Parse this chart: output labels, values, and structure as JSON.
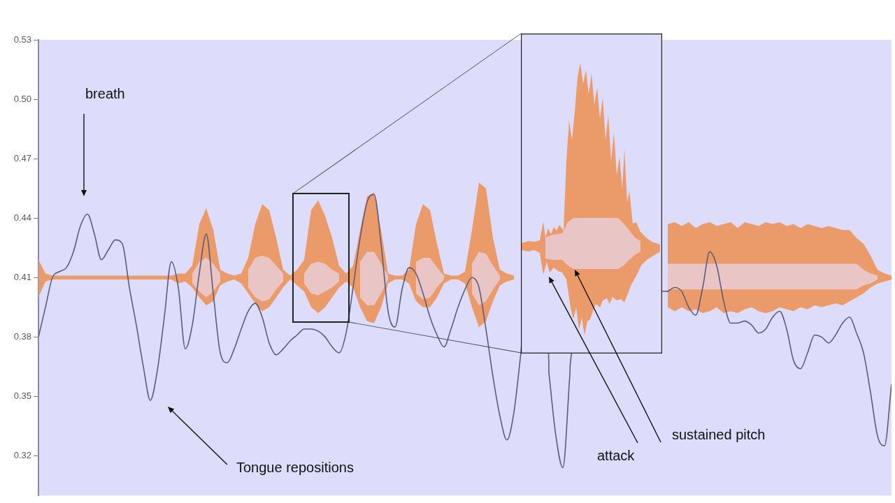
{
  "chart_data": {
    "type": "line",
    "tick_labels": "y",
    "ylim": [
      0.3,
      0.53
    ],
    "yticks": [
      0.32,
      0.35,
      0.38,
      0.41,
      0.44,
      0.47,
      {
        "value": 0.5,
        "label": "0.50"
      },
      0.53
    ],
    "categories": [
      null,
      null,
      null,
      null,
      null,
      null,
      null,
      null,
      null,
      null,
      null,
      null,
      null,
      null,
      null,
      null,
      null,
      null,
      null,
      null,
      null,
      null,
      null,
      null,
      null,
      null,
      null,
      null,
      null,
      null,
      null,
      null,
      null,
      null,
      null,
      null,
      null,
      null,
      null,
      null,
      null,
      null,
      null,
      null,
      null,
      null,
      null,
      null,
      null,
      null,
      null,
      null,
      null,
      null,
      null,
      null,
      null,
      null,
      null,
      null,
      null,
      null,
      null,
      null,
      null,
      null,
      null,
      null,
      null,
      null,
      null,
      null,
      null,
      null,
      null,
      null,
      null,
      null,
      null,
      null,
      null,
      null,
      null,
      null,
      null,
      null,
      null,
      null,
      null,
      null,
      null,
      null,
      null,
      null,
      null,
      null,
      null,
      null,
      null,
      null,
      null,
      null,
      null,
      null,
      null,
      null,
      null,
      null,
      null,
      null,
      null,
      null,
      null,
      null,
      null,
      null,
      null,
      null,
      null,
      null,
      null,
      null,
      null
    ],
    "series": [
      {
        "color": "#eb9b6a",
        "values": [
          null,
          null,
          null,
          null,
          null,
          null,
          null,
          null,
          null,
          null,
          null,
          null,
          null,
          null,
          null,
          null,
          null,
          null,
          null,
          null,
          null,
          null,
          null,
          null,
          null,
          null,
          null,
          null,
          null,
          null,
          null,
          null,
          null,
          null,
          null,
          null,
          null,
          null,
          null,
          null,
          null,
          null,
          null,
          null,
          null,
          null,
          null,
          null,
          null,
          null,
          null,
          null,
          null,
          null,
          null,
          null,
          null,
          null,
          null,
          null,
          null,
          null,
          null,
          null,
          null,
          null,
          null,
          null,
          null,
          null,
          null,
          null,
          null,
          null,
          null,
          null,
          null,
          null,
          null,
          null,
          null,
          null,
          null,
          null,
          null,
          null,
          null,
          null,
          null,
          null,
          null,
          null,
          null,
          null,
          null,
          null,
          null,
          null,
          null,
          null,
          null,
          null,
          null,
          null,
          null,
          null,
          null,
          null,
          null,
          null,
          null,
          null,
          null,
          null,
          null,
          null,
          null,
          null,
          null,
          null,
          null,
          null,
          null
        ],
        "upper": [
          0.419,
          0.412,
          0.411,
          0.411,
          0.411,
          0.411,
          0.411,
          0.411,
          0.411,
          0.411,
          0.411,
          0.411,
          0.411,
          0.411,
          0.411,
          0.411,
          0.411,
          0.411,
          0.411,
          0.411,
          0.412,
          0.412,
          0.416,
          0.437,
          0.445,
          0.434,
          0.414,
          0.412,
          0.411,
          0.412,
          0.42,
          0.437,
          0.447,
          0.444,
          0.43,
          0.414,
          0.411,
          0.414,
          0.419,
          0.444,
          0.449,
          0.441,
          0.43,
          0.416,
          0.412,
          0.416,
          0.434,
          0.451,
          0.453,
          0.434,
          0.412,
          0.411,
          0.411,
          0.414,
          0.437,
          0.447,
          0.444,
          0.427,
          0.412,
          0.411,
          0.411,
          0.413,
          0.434,
          0.458,
          0.455,
          0.43,
          0.414,
          0.412,
          0.411,
          null,
          null,
          null,
          null,
          null,
          null,
          null,
          null,
          null,
          null,
          null,
          null,
          null,
          null,
          null,
          null,
          null,
          null,
          null,
          null,
          null,
          0.437,
          0.438,
          0.436,
          0.438,
          0.435,
          0.437,
          0.438,
          0.436,
          0.437,
          0.438,
          0.435,
          0.438,
          0.437,
          0.436,
          0.438,
          0.437,
          0.438,
          0.436,
          0.437,
          0.435,
          0.437,
          0.436,
          0.435,
          0.436,
          0.435,
          0.434,
          0.434,
          0.43,
          0.427,
          0.421,
          0.414,
          0.412,
          0.411
        ],
        "lower": [
          0.4,
          0.408,
          0.409,
          0.409,
          0.409,
          0.409,
          0.409,
          0.409,
          0.409,
          0.409,
          0.409,
          0.409,
          0.409,
          0.409,
          0.409,
          0.409,
          0.409,
          0.409,
          0.409,
          0.409,
          0.407,
          0.408,
          0.405,
          0.4,
          0.396,
          0.398,
          0.406,
          0.408,
          0.409,
          0.407,
          0.402,
          0.397,
          0.393,
          0.395,
          0.4,
          0.405,
          0.409,
          0.406,
          0.403,
          0.395,
          0.392,
          0.395,
          0.4,
          0.405,
          0.408,
          0.405,
          0.395,
          0.388,
          0.387,
          0.395,
          0.407,
          0.409,
          0.409,
          0.407,
          0.398,
          0.395,
          0.395,
          0.4,
          0.407,
          0.409,
          0.409,
          0.407,
          0.395,
          0.385,
          0.388,
          0.398,
          0.406,
          0.408,
          0.409,
          null,
          null,
          null,
          null,
          null,
          null,
          null,
          null,
          null,
          null,
          null,
          null,
          null,
          null,
          null,
          null,
          null,
          null,
          null,
          null,
          null,
          0.395,
          0.393,
          0.395,
          0.393,
          0.394,
          0.392,
          0.393,
          0.395,
          0.392,
          0.393,
          0.392,
          0.394,
          0.395,
          0.393,
          0.392,
          0.393,
          0.395,
          0.394,
          0.393,
          0.395,
          0.394,
          0.396,
          0.395,
          0.396,
          0.397,
          0.396,
          0.398,
          0.4,
          0.402,
          0.405,
          0.407,
          0.408,
          0.409
        ]
      },
      {
        "color": "#e9c5c5",
        "values": [
          null,
          null,
          null,
          null,
          null,
          null,
          null,
          null,
          null,
          null,
          null,
          null,
          null,
          null,
          null,
          null,
          null,
          null,
          null,
          null,
          null,
          null,
          null,
          null,
          null,
          null,
          null,
          null,
          null,
          null,
          null,
          null,
          null,
          null,
          null,
          null,
          null,
          null,
          null,
          null,
          null,
          null,
          null,
          null,
          null,
          null,
          null,
          null,
          null,
          null,
          null,
          null,
          null,
          null,
          null,
          null,
          null,
          null,
          null,
          null,
          null,
          null,
          null,
          null,
          null,
          null,
          null,
          null,
          null,
          null,
          null,
          null,
          null,
          null,
          null,
          null,
          null,
          null,
          null,
          null,
          null,
          null,
          null,
          null,
          null,
          null,
          null,
          null,
          null,
          null,
          null,
          null,
          null,
          null,
          null,
          null,
          null,
          null,
          null,
          null,
          null,
          null,
          null,
          null,
          null,
          null,
          null,
          null,
          null,
          null,
          null,
          null,
          null,
          null,
          null,
          null,
          null,
          null,
          null,
          null,
          null,
          null,
          null
        ],
        "upper": [
          null,
          null,
          null,
          null,
          null,
          null,
          null,
          null,
          null,
          null,
          null,
          null,
          null,
          null,
          null,
          null,
          null,
          null,
          null,
          null,
          null,
          null,
          0.412,
          0.418,
          0.42,
          0.417,
          0.412,
          null,
          null,
          null,
          0.414,
          0.42,
          0.421,
          0.42,
          0.416,
          0.412,
          null,
          null,
          0.412,
          0.417,
          0.418,
          0.417,
          0.414,
          0.412,
          null,
          null,
          0.418,
          0.423,
          0.423,
          0.417,
          0.411,
          null,
          null,
          null,
          0.418,
          0.42,
          0.42,
          0.415,
          0.411,
          null,
          null,
          null,
          0.417,
          0.423,
          0.422,
          0.416,
          0.411,
          null,
          null,
          null,
          null,
          null,
          null,
          null,
          null,
          null,
          null,
          null,
          null,
          null,
          null,
          null,
          null,
          null,
          null,
          null,
          null,
          null,
          null,
          null,
          0.417,
          0.417,
          0.417,
          0.417,
          0.417,
          0.417,
          0.417,
          0.417,
          0.417,
          0.417,
          0.417,
          0.417,
          0.417,
          0.417,
          0.417,
          0.417,
          0.417,
          0.417,
          0.417,
          0.417,
          0.417,
          0.417,
          0.417,
          0.417,
          0.417,
          0.417,
          0.417,
          0.417,
          0.414,
          0.412,
          0.411,
          null,
          null
        ],
        "lower": [
          null,
          null,
          null,
          null,
          null,
          null,
          null,
          null,
          null,
          null,
          null,
          null,
          null,
          null,
          null,
          null,
          null,
          null,
          null,
          null,
          null,
          null,
          0.407,
          0.403,
          0.4,
          0.403,
          0.408,
          null,
          null,
          null,
          0.405,
          0.4,
          0.398,
          0.399,
          0.404,
          0.408,
          null,
          null,
          0.407,
          0.402,
          0.401,
          0.403,
          0.405,
          0.408,
          null,
          null,
          0.4,
          0.396,
          0.396,
          0.402,
          0.409,
          null,
          null,
          null,
          0.402,
          0.399,
          0.4,
          0.405,
          0.409,
          null,
          null,
          null,
          0.402,
          0.396,
          0.398,
          0.404,
          0.409,
          null,
          null,
          null,
          null,
          null,
          null,
          null,
          null,
          null,
          null,
          null,
          null,
          null,
          null,
          null,
          null,
          null,
          null,
          null,
          null,
          null,
          null,
          null,
          0.404,
          0.404,
          0.404,
          0.404,
          0.404,
          0.404,
          0.404,
          0.404,
          0.404,
          0.404,
          0.404,
          0.404,
          0.404,
          0.404,
          0.404,
          0.404,
          0.404,
          0.404,
          0.404,
          0.404,
          0.404,
          0.404,
          0.404,
          0.404,
          0.404,
          0.404,
          0.404,
          0.404,
          0.406,
          0.407,
          0.409,
          null,
          null
        ]
      },
      {
        "color": "#5b5d78",
        "values": [
          0.38,
          0.395,
          0.41,
          0.413,
          0.415,
          0.423,
          0.436,
          0.442,
          0.432,
          0.419,
          0.424,
          0.429,
          0.427,
          0.405,
          0.386,
          0.365,
          0.348,
          0.363,
          0.39,
          0.418,
          0.405,
          0.374,
          0.386,
          0.412,
          0.432,
          0.402,
          0.372,
          0.367,
          0.374,
          0.384,
          0.393,
          0.397,
          0.39,
          0.377,
          0.371,
          0.374,
          0.378,
          0.381,
          0.384,
          0.384,
          0.383,
          0.38,
          0.375,
          0.372,
          0.382,
          0.405,
          0.43,
          0.448,
          0.452,
          0.427,
          0.393,
          0.385,
          0.404,
          0.415,
          0.412,
          0.402,
          0.39,
          0.381,
          0.375,
          0.384,
          0.395,
          0.404,
          0.41,
          0.405,
          0.384,
          0.36,
          0.34,
          0.328,
          0.342,
          0.372,
          null,
          null,
          null,
          0.362,
          0.33,
          0.314,
          0.361,
          null,
          null,
          null,
          null,
          null,
          null,
          null,
          null,
          null,
          null,
          null,
          null,
          null,
          0.403,
          0.405,
          0.403,
          0.395,
          0.391,
          0.405,
          0.423,
          0.416,
          0.398,
          0.387,
          0.387,
          0.388,
          0.386,
          0.382,
          0.384,
          0.39,
          0.393,
          0.384,
          0.368,
          0.364,
          0.372,
          0.381,
          0.38,
          0.377,
          0.381,
          0.387,
          0.39,
          0.382,
          0.372,
          0.352,
          0.33,
          0.325,
          0.356
        ]
      }
    ],
    "annotations": [
      "breath",
      "Tongue repositions",
      "attack",
      "sustained pitch"
    ]
  }
}
